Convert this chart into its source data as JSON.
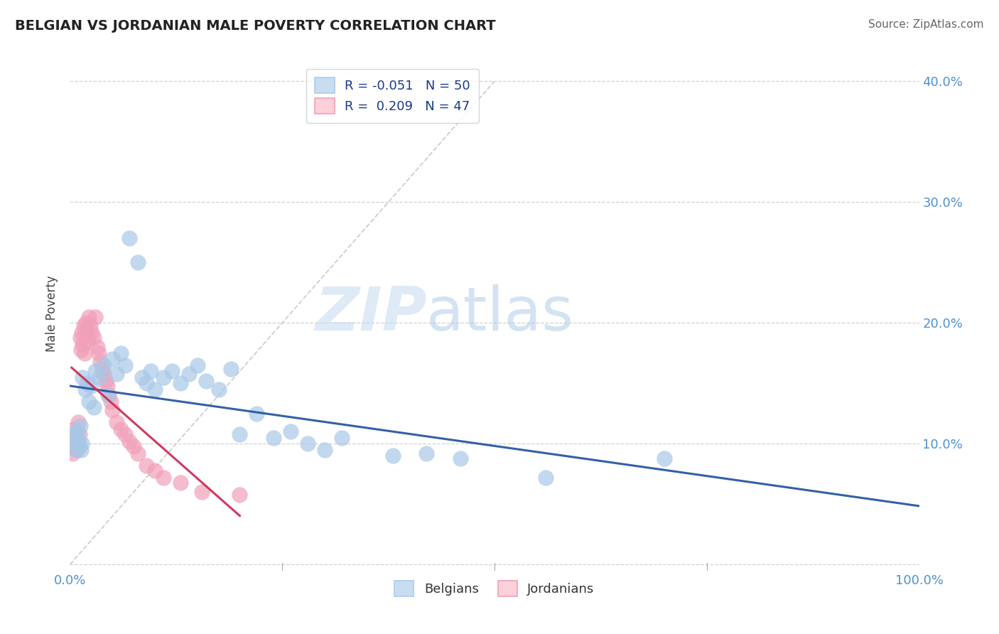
{
  "title": "BELGIAN VS JORDANIAN MALE POVERTY CORRELATION CHART",
  "source": "Source: ZipAtlas.com",
  "ylabel": "Male Poverty",
  "r_belgian": -0.051,
  "n_belgian": 50,
  "r_jordanian": 0.209,
  "n_jordanian": 47,
  "belgian_color": "#a8c8e8",
  "jordanian_color": "#f0a0b8",
  "belgian_line_color": "#2858a0",
  "jordanian_line_color": "#cc3055",
  "belgian_fill_color": "#c8ddf0",
  "jordanian_fill_color": "#fcd0d8",
  "diagonal_color": "#c8c8c8",
  "watermark_color": "#ddeeff",
  "background_color": "#ffffff",
  "grid_color": "#cccccc",
  "xlim": [
    0.0,
    1.0
  ],
  "ylim": [
    -0.005,
    0.42
  ],
  "belgians_x": [
    0.005,
    0.006,
    0.007,
    0.008,
    0.009,
    0.01,
    0.011,
    0.012,
    0.013,
    0.014,
    0.015,
    0.018,
    0.02,
    0.022,
    0.025,
    0.028,
    0.03,
    0.035,
    0.04,
    0.045,
    0.05,
    0.055,
    0.06,
    0.065,
    0.07,
    0.08,
    0.085,
    0.09,
    0.095,
    0.1,
    0.11,
    0.12,
    0.13,
    0.14,
    0.15,
    0.16,
    0.175,
    0.19,
    0.2,
    0.22,
    0.24,
    0.26,
    0.28,
    0.3,
    0.32,
    0.38,
    0.42,
    0.46,
    0.56,
    0.7
  ],
  "belgians_y": [
    0.108,
    0.1,
    0.095,
    0.105,
    0.11,
    0.102,
    0.098,
    0.115,
    0.095,
    0.1,
    0.155,
    0.145,
    0.15,
    0.135,
    0.148,
    0.13,
    0.16,
    0.155,
    0.165,
    0.14,
    0.17,
    0.158,
    0.175,
    0.165,
    0.27,
    0.25,
    0.155,
    0.15,
    0.16,
    0.145,
    0.155,
    0.16,
    0.15,
    0.158,
    0.165,
    0.152,
    0.145,
    0.162,
    0.108,
    0.125,
    0.105,
    0.11,
    0.1,
    0.095,
    0.105,
    0.09,
    0.092,
    0.088,
    0.072,
    0.088
  ],
  "jordanians_x": [
    0.002,
    0.003,
    0.004,
    0.005,
    0.006,
    0.007,
    0.008,
    0.009,
    0.01,
    0.011,
    0.012,
    0.013,
    0.014,
    0.015,
    0.016,
    0.017,
    0.018,
    0.019,
    0.02,
    0.021,
    0.022,
    0.024,
    0.026,
    0.028,
    0.03,
    0.032,
    0.034,
    0.036,
    0.038,
    0.04,
    0.042,
    0.044,
    0.046,
    0.048,
    0.05,
    0.055,
    0.06,
    0.065,
    0.07,
    0.075,
    0.08,
    0.09,
    0.1,
    0.11,
    0.13,
    0.155,
    0.2
  ],
  "jordanians_y": [
    0.098,
    0.092,
    0.105,
    0.112,
    0.1,
    0.108,
    0.095,
    0.102,
    0.118,
    0.108,
    0.188,
    0.178,
    0.192,
    0.182,
    0.198,
    0.175,
    0.19,
    0.2,
    0.195,
    0.185,
    0.205,
    0.198,
    0.192,
    0.188,
    0.205,
    0.18,
    0.175,
    0.168,
    0.162,
    0.158,
    0.152,
    0.148,
    0.14,
    0.135,
    0.128,
    0.118,
    0.112,
    0.108,
    0.102,
    0.098,
    0.092,
    0.082,
    0.078,
    0.072,
    0.068,
    0.06,
    0.058
  ]
}
